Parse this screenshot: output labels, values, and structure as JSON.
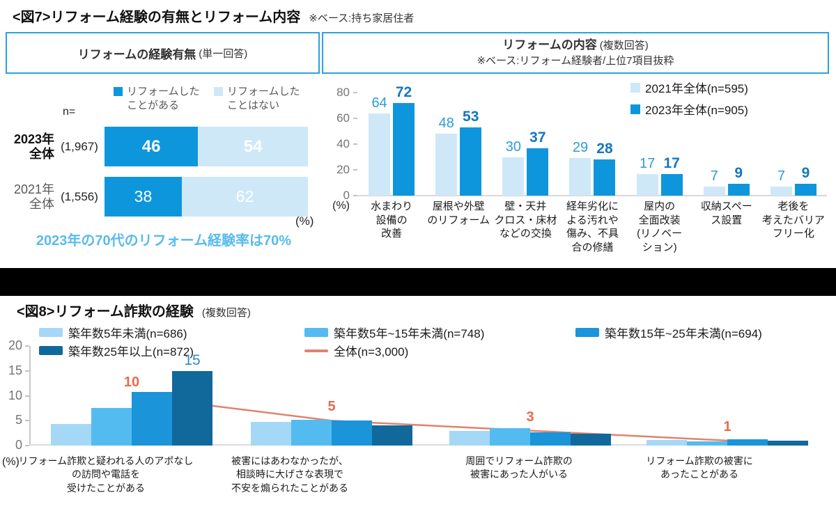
{
  "fig7": {
    "title": "<図7>リフォーム経験の有無とリフォーム内容",
    "base_note": "※ベース:持ち家居住者",
    "left_panel": {
      "header_main": "リフォームの経験有無",
      "header_sub": "(単一回答)"
    },
    "right_panel": {
      "header_main": "リフォームの内容",
      "header_sub": "(複数回答)",
      "header_note": "※ベース:リフォーム経験者/上位7項目抜粋"
    }
  },
  "fig8": {
    "title": "<図8>リフォーム詐欺の経験",
    "title_sub": "(複数回答)"
  },
  "chart_data": [
    {
      "id": "reform-experience",
      "type": "bar",
      "orientation": "horizontal-stacked",
      "title": "リフォームの経験有無(単一回答)",
      "n_label": "n=",
      "categories": [
        "2023年全体",
        "2021年全体"
      ],
      "category_lines": [
        [
          "2023年",
          "全体"
        ],
        [
          "2021年",
          "全体"
        ]
      ],
      "category_n": [
        "(1,967)",
        "(1,556)"
      ],
      "series": [
        {
          "name": "リフォームしたことがある",
          "color": "#0e96dc",
          "values": [
            46,
            38
          ]
        },
        {
          "name": "リフォームしたことはない",
          "color": "#cfe8f8",
          "values": [
            54,
            62
          ]
        }
      ],
      "xlim": [
        0,
        100
      ],
      "unit": "(%)",
      "annotation": "2023年の70代のリフォーム経験率は70%",
      "annotation_color": "#59bbec"
    },
    {
      "id": "reform-content",
      "type": "bar",
      "title": "リフォームの内容(複数回答) ※ベース:リフォーム経験者/上位7項目抜粋",
      "categories": [
        "水まわり設備の改善",
        "屋根や外壁のリフォーム",
        "壁・天井クロス・床材などの交換",
        "経年劣化による汚れや傷み、不具合の修繕",
        "屋内の全面改装(リノベーション)",
        "収納スペース設置",
        "老後を考えたバリアフリー化"
      ],
      "category_lines": [
        [
          "水まわり",
          "設備の",
          "改善"
        ],
        [
          "屋根や外壁",
          "のリフォーム"
        ],
        [
          "壁・天井",
          "クロス・床材",
          "などの交換"
        ],
        [
          "経年劣化に",
          "よる汚れや",
          "傷み、不具",
          "合の修繕"
        ],
        [
          "屋内の",
          "全面改装",
          "(リノベー",
          "ション)"
        ],
        [
          "収納スペー",
          "ス設置"
        ],
        [
          "老後を",
          "考えたバリア",
          "フリー化"
        ]
      ],
      "series": [
        {
          "name": "2021年全体(n=595)",
          "color": "#cfe8f8",
          "label_color": "#2d9bd8",
          "values": [
            64,
            48,
            30,
            29,
            17,
            7,
            7
          ]
        },
        {
          "name": "2023年全体(n=905)",
          "color": "#0e96dc",
          "label_color": "#1577bd",
          "values": [
            72,
            53,
            37,
            28,
            17,
            9,
            9
          ]
        }
      ],
      "ylim": [
        0,
        80
      ],
      "yticks": [
        0,
        20,
        40,
        60,
        80
      ],
      "unit": "(%)",
      "grid": false,
      "legend_position": "top-right"
    },
    {
      "id": "reform-fraud-experience",
      "type": "bar+line",
      "title": "リフォーム詐欺の経験(複数回答)",
      "categories": [
        "リフォーム詐欺と疑われる人のアポなしの訪問や電話を受けたことがある",
        "被害にはあわなかったが、相談時に大げさな表現で不安を煽られたことがある",
        "周囲でリフォーム詐欺の被害にあった人がいる",
        "リフォーム詐欺の被害にあったことがある"
      ],
      "category_lines": [
        [
          "リフォーム詐欺と疑われる人のアポなし",
          "の訪問や電話を",
          "受けたことがある"
        ],
        [
          "被害にはあわなかったが、",
          "相談時に大げさな表現で",
          "不安を煽られたことがある"
        ],
        [
          "周囲でリフォーム詐欺の",
          "被害にあった人がいる"
        ],
        [
          "リフォーム詐欺の被害に",
          "あったことがある"
        ]
      ],
      "series": [
        {
          "name": "築年数5年未満(n=686)",
          "color": "#a5d8f6",
          "values": [
            4.3,
            4.8,
            2.9,
            1.1
          ]
        },
        {
          "name": "築年数5年~15年未満(n=748)",
          "color": "#54bbf0",
          "values": [
            7.5,
            5.2,
            3.5,
            0.8
          ]
        },
        {
          "name": "築年数15年~25年未満(n=694)",
          "color": "#1b94d9",
          "values": [
            10.8,
            5.0,
            2.7,
            1.3
          ]
        },
        {
          "name": "築年数25年以上(n=872)",
          "color": "#11689b",
          "values": [
            15,
            4.0,
            2.4,
            1.0
          ]
        }
      ],
      "line_series": {
        "name": "全体(n=3,000)",
        "color": "#df836e",
        "label_color": "#e86a4c",
        "values": [
          10,
          5,
          3,
          1
        ]
      },
      "bar_value_labels": [
        {
          "category": 0,
          "series": 3,
          "text": "15",
          "color": "#2e8bc8"
        }
      ],
      "ylim": [
        0,
        20
      ],
      "yticks": [
        0,
        5,
        10,
        15,
        20
      ],
      "unit": "(%)",
      "grid": false
    }
  ]
}
